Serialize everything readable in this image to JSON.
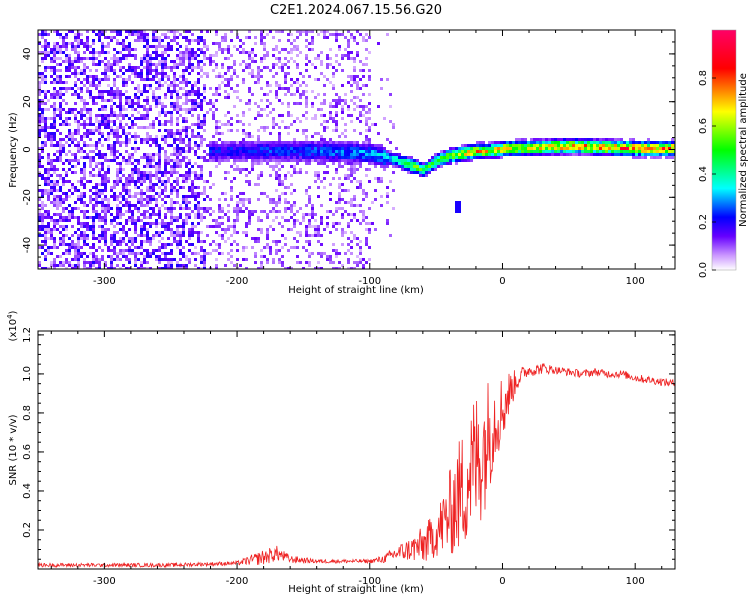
{
  "title": "C2E1.2024.067.15.56.G20",
  "colors": {
    "snr_line": "#ee2222",
    "axis": "#000000",
    "background": "#ffffff"
  },
  "chart_data": [
    {
      "type": "heatmap",
      "name": "spectrogram",
      "xlabel": "Height of straight line (km)",
      "ylabel": "Frequency (Hz)",
      "xlim": [
        -350,
        130
      ],
      "ylim": [
        -50,
        50
      ],
      "xticks": [
        -300,
        -200,
        -100,
        0,
        100
      ],
      "yticks": [
        -40,
        -20,
        0,
        20,
        40
      ],
      "colorbar": {
        "label": "Normalized spectral amplitude",
        "range": [
          0.0,
          1.0
        ],
        "ticks": [
          0.0,
          0.2,
          0.4,
          0.6,
          0.8
        ],
        "colormap": [
          "#ffffff",
          "#cc99ff",
          "#6600ff",
          "#0000ff",
          "#00ffff",
          "#00ff00",
          "#ffff00",
          "#ff0000",
          "#ff0066"
        ]
      },
      "signal_track": {
        "heights_km": [
          -220,
          -150,
          -100,
          -80,
          -70,
          -60,
          -50,
          -40,
          -30,
          -20,
          -10,
          0,
          50,
          100,
          130
        ],
        "frequency_hz": [
          0,
          0,
          -1,
          -4,
          -6,
          -8,
          -4,
          -2,
          -1,
          0,
          0,
          1,
          2,
          1,
          1
        ],
        "peak_amplitude": [
          0.25,
          0.3,
          0.35,
          0.45,
          0.7,
          0.55,
          0.6,
          0.7,
          0.75,
          0.85,
          0.8,
          0.8,
          0.85,
          0.95,
          0.9
        ]
      },
      "isolated_blip": {
        "height_km": -35,
        "frequency_hz": -23
      }
    },
    {
      "type": "line",
      "name": "snr",
      "xlabel": "Height of straight line (km)",
      "ylabel": "SNR (10 * v/v)",
      "y_multiplier_label": "(x10",
      "y_multiplier_exp": "4",
      "xlim": [
        -350,
        130
      ],
      "ylim": [
        0,
        1.22
      ],
      "y_scale": 10000,
      "xticks": [
        -300,
        -200,
        -100,
        0,
        100
      ],
      "yticks": [
        0.2,
        0.4,
        0.6,
        0.8,
        1.0,
        1.2
      ],
      "series": [
        {
          "name": "SNR",
          "x": [
            -350,
            -300,
            -250,
            -200,
            -180,
            -170,
            -160,
            -140,
            -120,
            -100,
            -90,
            -80,
            -70,
            -60,
            -50,
            -40,
            -35,
            -30,
            -25,
            -20,
            -15,
            -10,
            -5,
            0,
            5,
            10,
            15,
            20,
            25,
            30,
            40,
            50,
            60,
            70,
            80,
            90,
            100,
            110,
            120,
            130
          ],
          "values": [
            0.02,
            0.02,
            0.02,
            0.03,
            0.06,
            0.08,
            0.05,
            0.04,
            0.04,
            0.04,
            0.05,
            0.08,
            0.1,
            0.12,
            0.18,
            0.28,
            0.35,
            0.4,
            0.5,
            0.55,
            0.6,
            0.7,
            0.78,
            0.82,
            0.9,
            0.96,
            1.0,
            1.02,
            1.02,
            1.03,
            1.02,
            1.01,
            1.0,
            1.01,
            1.0,
            1.0,
            0.98,
            0.97,
            0.96,
            0.95
          ],
          "noise_amplitude": [
            0.01,
            0.01,
            0.01,
            0.01,
            0.04,
            0.04,
            0.02,
            0.01,
            0.01,
            0.01,
            0.02,
            0.04,
            0.06,
            0.1,
            0.12,
            0.22,
            0.28,
            0.32,
            0.35,
            0.38,
            0.35,
            0.3,
            0.22,
            0.18,
            0.12,
            0.06,
            0.04,
            0.03,
            0.03,
            0.03,
            0.02,
            0.02,
            0.02,
            0.02,
            0.02,
            0.02,
            0.02,
            0.02,
            0.02,
            0.02
          ]
        }
      ]
    }
  ]
}
